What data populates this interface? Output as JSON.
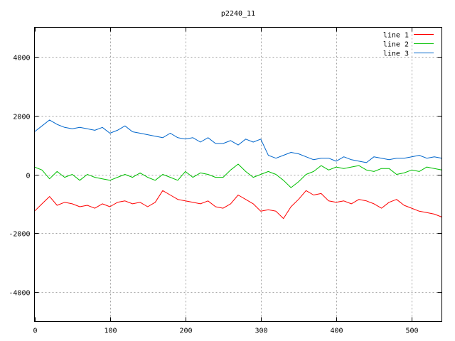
{
  "chart_data": {
    "type": "line",
    "title": "p2240_11",
    "xlabel": "",
    "ylabel": "",
    "xlim": [
      0,
      540
    ],
    "ylim": [
      -5000,
      5000
    ],
    "xticks": [
      0,
      100,
      200,
      300,
      400,
      500
    ],
    "yticks": [
      -4000,
      -2000,
      0,
      2000,
      4000
    ],
    "grid": true,
    "legend_position": "top-right",
    "x": [
      0,
      10,
      20,
      30,
      40,
      50,
      60,
      70,
      80,
      90,
      100,
      110,
      120,
      130,
      140,
      150,
      160,
      170,
      180,
      190,
      200,
      210,
      220,
      230,
      240,
      250,
      260,
      270,
      280,
      290,
      300,
      310,
      320,
      330,
      340,
      350,
      360,
      370,
      380,
      390,
      400,
      410,
      420,
      430,
      440,
      450,
      460,
      470,
      480,
      490,
      500,
      510,
      520,
      530,
      540
    ],
    "series": [
      {
        "name": "line 1",
        "color": "#ff0000",
        "values": [
          -1250,
          -1000,
          -750,
          -1050,
          -950,
          -1000,
          -1100,
          -1050,
          -1150,
          -1000,
          -1100,
          -950,
          -900,
          -1000,
          -950,
          -1100,
          -950,
          -550,
          -700,
          -850,
          -900,
          -950,
          -1000,
          -900,
          -1100,
          -1150,
          -1000,
          -700,
          -850,
          -1000,
          -1250,
          -1200,
          -1250,
          -1500,
          -1100,
          -850,
          -550,
          -700,
          -650,
          -900,
          -950,
          -900,
          -1000,
          -850,
          -900,
          -1000,
          -1150,
          -950,
          -850,
          -1050,
          -1150,
          -1250,
          -1300,
          -1350,
          -1450
        ]
      },
      {
        "name": "line 2",
        "color": "#00c000",
        "values": [
          250,
          150,
          -150,
          100,
          -100,
          0,
          -200,
          0,
          -100,
          -150,
          -200,
          -100,
          0,
          -100,
          50,
          -100,
          -200,
          0,
          -100,
          -200,
          100,
          -100,
          50,
          0,
          -100,
          -100,
          150,
          350,
          100,
          -100,
          0,
          100,
          0,
          -200,
          -450,
          -250,
          0,
          100,
          300,
          150,
          250,
          200,
          250,
          300,
          150,
          100,
          200,
          200,
          0,
          50,
          150,
          100,
          250,
          200,
          150
        ]
      },
      {
        "name": "line 3",
        "color": "#0066cc",
        "values": [
          1450,
          1650,
          1850,
          1700,
          1600,
          1550,
          1600,
          1550,
          1500,
          1600,
          1400,
          1500,
          1650,
          1450,
          1400,
          1350,
          1300,
          1250,
          1400,
          1250,
          1200,
          1250,
          1100,
          1250,
          1050,
          1050,
          1150,
          1000,
          1200,
          1100,
          1200,
          650,
          550,
          650,
          750,
          700,
          600,
          500,
          550,
          550,
          450,
          600,
          500,
          450,
          400,
          600,
          550,
          500,
          550,
          550,
          600,
          650,
          550,
          600,
          550
        ]
      }
    ]
  }
}
